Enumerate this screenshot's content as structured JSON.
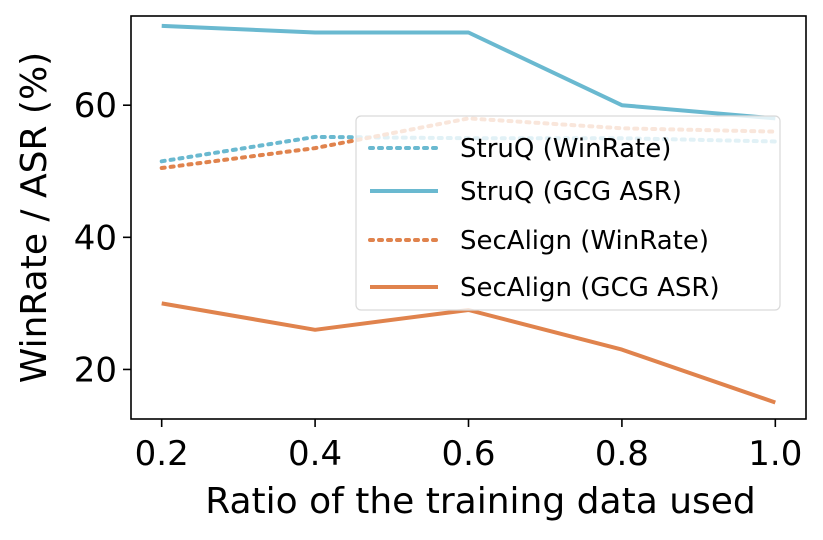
{
  "chart_data": {
    "type": "line",
    "title": "",
    "xlabel": "Ratio of the training data used",
    "ylabel": "WinRate / ASR (%)",
    "x": [
      0.2,
      0.4,
      0.6,
      0.8,
      1.0
    ],
    "xticks": [
      "0.2",
      "0.4",
      "0.6",
      "0.8",
      "1.0"
    ],
    "yticks": [
      "20",
      "40",
      "60"
    ],
    "ytick_values": [
      20,
      40,
      60
    ],
    "xlim": [
      0.16,
      1.04
    ],
    "ylim": [
      12.5,
      73.5
    ],
    "grid": false,
    "legend_position": "center-right",
    "series": [
      {
        "name": "StruQ (WinRate)",
        "values": [
          51.5,
          55.2,
          55.0,
          55.0,
          54.5
        ],
        "color": "#6ab9d0",
        "style": "dotted"
      },
      {
        "name": "StruQ (GCG ASR)",
        "values": [
          72,
          71,
          71,
          60,
          58
        ],
        "color": "#6ab9d0",
        "style": "solid"
      },
      {
        "name": "SecAlign (WinRate)",
        "values": [
          50.5,
          53.5,
          58.0,
          56.5,
          56.0
        ],
        "color": "#e0834d",
        "style": "dotted"
      },
      {
        "name": "SecAlign (GCG ASR)",
        "values": [
          30,
          26,
          29,
          23,
          15
        ],
        "color": "#e0834d",
        "style": "solid"
      }
    ]
  }
}
